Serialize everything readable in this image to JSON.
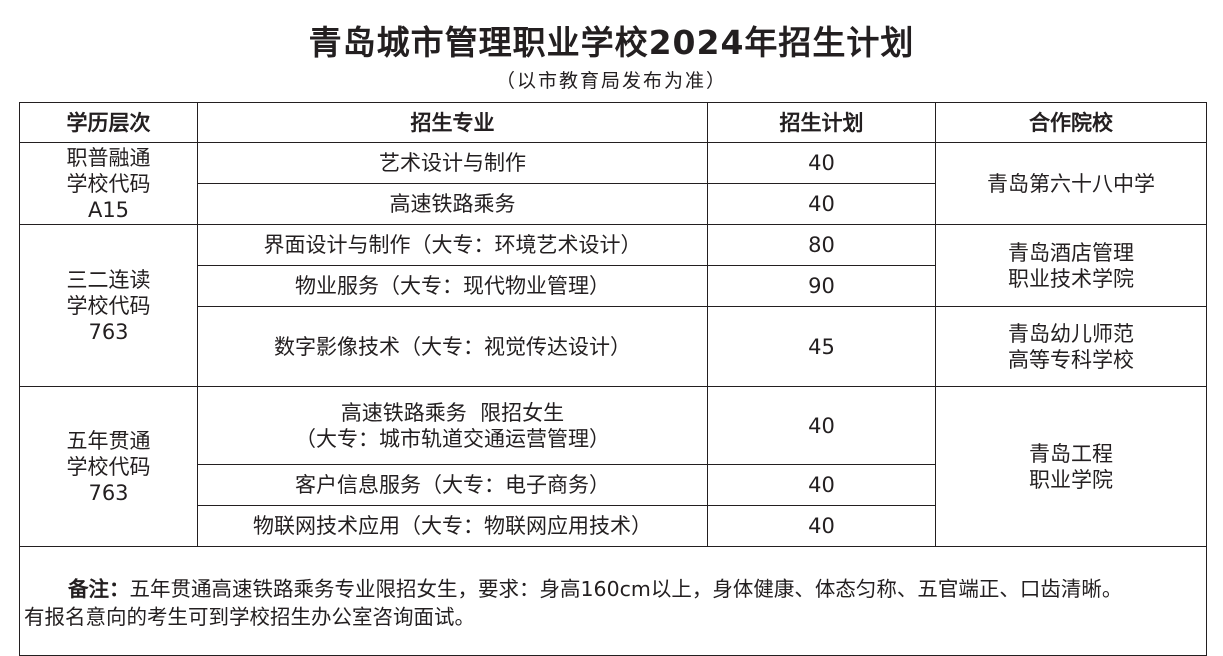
{
  "title": "青岛城市管理职业学校2024年招生计划",
  "subtitle": "（以市教育局发布为准）",
  "headers": {
    "level": "学历层次",
    "major": "招生专业",
    "plan": "招生计划",
    "partner": "合作院校"
  },
  "groups": [
    {
      "level_lines": [
        "职普融通",
        "学校代码",
        "A15"
      ],
      "rows": [
        {
          "major_lines": [
            "艺术设计与制作"
          ],
          "plan": "40"
        },
        {
          "major_lines": [
            "高速铁路乘务"
          ],
          "plan": "40"
        }
      ],
      "partners": [
        {
          "lines": [
            "青岛第六十八中学"
          ]
        }
      ]
    },
    {
      "level_lines": [
        "三二连读",
        "学校代码",
        "763"
      ],
      "rows": [
        {
          "major_lines": [
            "界面设计与制作（大专：环境艺术设计）"
          ],
          "plan": "80"
        },
        {
          "major_lines": [
            "物业服务（大专：现代物业管理）"
          ],
          "plan": "90"
        },
        {
          "major_lines": [
            "数字影像技术（大专：视觉传达设计）"
          ],
          "plan": "45"
        }
      ],
      "partners": [
        {
          "lines": [
            "青岛酒店管理",
            "职业技术学院"
          ]
        },
        {
          "lines": [
            "青岛幼儿师范",
            "高等专科学校"
          ]
        }
      ]
    },
    {
      "level_lines": [
        "五年贯通",
        "学校代码",
        "763"
      ],
      "rows": [
        {
          "major_lines": [
            "高速铁路乘务  限招女生",
            "（大专：城市轨道交通运营管理）"
          ],
          "plan": "40"
        },
        {
          "major_lines": [
            "客户信息服务（大专：电子商务）"
          ],
          "plan": "40"
        },
        {
          "major_lines": [
            "物联网技术应用（大专：物联网应用技术）"
          ],
          "plan": "40"
        }
      ],
      "partners": [
        {
          "lines": [
            "青岛工程",
            "职业学院"
          ]
        }
      ]
    }
  ],
  "note": {
    "label": "备注：",
    "text_line1": "五年贯通高速铁路乘务专业限招女生，要求：身高160cm以上，身体健康、体态匀称、五官端正、口齿清晰。",
    "text_line2": "有报名意向的考生可到学校招生办公室咨询面试。"
  }
}
